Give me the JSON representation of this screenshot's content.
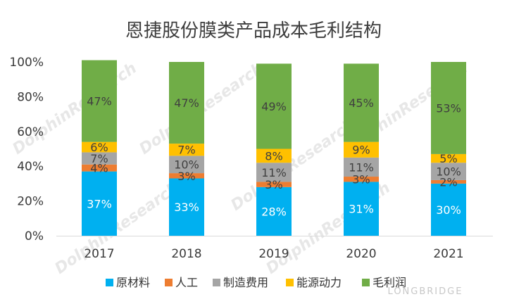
{
  "chart_data": {
    "type": "bar",
    "stacked": true,
    "title": "恩捷股份膜类产品成本毛利结构",
    "categories": [
      "2017",
      "2018",
      "2019",
      "2020",
      "2021"
    ],
    "y_ticks": [
      "0%",
      "20%",
      "40%",
      "60%",
      "80%",
      "100%"
    ],
    "ylim": [
      0,
      100
    ],
    "legend_position": "bottom",
    "series": [
      {
        "name": "原材料",
        "color": "#00b0f0",
        "values": [
          37,
          33,
          28,
          31,
          30
        ],
        "labels": [
          "37%",
          "33%",
          "28%",
          "31%",
          "30%"
        ]
      },
      {
        "name": "人工",
        "color": "#ed7d31",
        "values": [
          4,
          3,
          3,
          3,
          2
        ],
        "labels": [
          "4%",
          "3%",
          "3%",
          "3%",
          "2%"
        ]
      },
      {
        "name": "制造费用",
        "color": "#a5a5a5",
        "values": [
          7,
          10,
          11,
          11,
          10
        ],
        "labels": [
          "7%",
          "10%",
          "11%",
          "11%",
          "10%"
        ]
      },
      {
        "name": "能源动力",
        "color": "#ffc000",
        "values": [
          6,
          7,
          8,
          9,
          5
        ],
        "labels": [
          "6%",
          "7%",
          "8%",
          "9%",
          "5%"
        ]
      },
      {
        "name": "毛利润",
        "color": "#70ad47",
        "values": [
          47,
          47,
          49,
          45,
          53
        ],
        "labels": [
          "47%",
          "47%",
          "49%",
          "45%",
          "53%"
        ]
      }
    ]
  },
  "watermark": {
    "text": "DolphinResearch",
    "brand": "LONGBRIDGE"
  }
}
